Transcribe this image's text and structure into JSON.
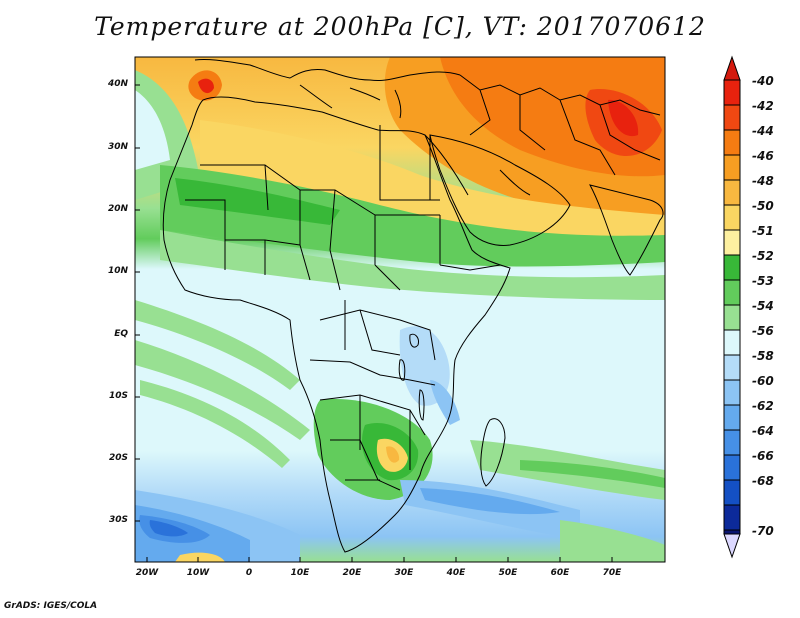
{
  "title": "Temperature at 200hPa [C], VT: 2017070612",
  "footer": "GrADS: IGES/COLA",
  "map": {
    "projection": "lat-lon",
    "lon_range": [
      -24,
      80
    ],
    "lat_range": [
      -36,
      45
    ],
    "field": "temperature",
    "units": "C"
  },
  "y_axis": {
    "labels": [
      "40N",
      "30N",
      "20N",
      "10N",
      "EQ",
      "10S",
      "20S",
      "30S"
    ]
  },
  "x_axis": {
    "labels": [
      "20W",
      "10W",
      "0",
      "10E",
      "20E",
      "30E",
      "40E",
      "50E",
      "60E",
      "70E"
    ]
  },
  "colorbar": {
    "levels": [
      "-40",
      "-42",
      "-44",
      "-46",
      "-48",
      "-50",
      "-51",
      "-52",
      "-53",
      "-54",
      "-56",
      "-58",
      "-60",
      "-62",
      "-64",
      "-66",
      "-68",
      "-70"
    ],
    "colors": [
      "#e8220e",
      "#f04812",
      "#f57c12",
      "#f79e22",
      "#f8b840",
      "#fad662",
      "#fdf0a0",
      "#38b838",
      "#62cc5c",
      "#98e092",
      "#ddf8fb",
      "#b4dcf8",
      "#8cc4f4",
      "#64aaee",
      "#4690e6",
      "#2a72da",
      "#1450c4",
      "#0c2a9a",
      "#0a1570"
    ],
    "under_color": "#dcd8ff",
    "over_color": "#d41a0e"
  }
}
